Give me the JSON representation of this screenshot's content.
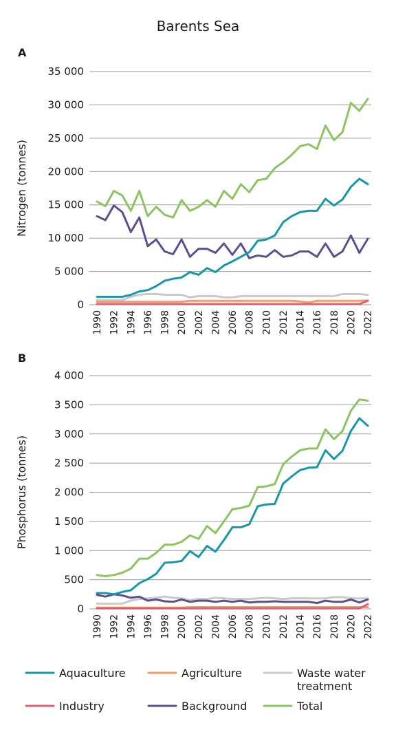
{
  "title": "Barents Sea",
  "colors": {
    "Aquaculture": "#1597a6",
    "Agriculture": "#f29b6b",
    "Waste water treatment": "#c9c9c9",
    "Industry": "#e0606f",
    "Background": "#5e4e8f",
    "Total": "#8dc462"
  },
  "legend": [
    {
      "name": "Aquaculture",
      "lines": [
        "Aquaculture"
      ]
    },
    {
      "name": "Agriculture",
      "lines": [
        "Agriculture"
      ]
    },
    {
      "name": "Waste water treatment",
      "lines": [
        "Waste water",
        "treatment"
      ]
    },
    {
      "name": "Industry",
      "lines": [
        "Industry"
      ]
    },
    {
      "name": "Background",
      "lines": [
        "Background"
      ]
    },
    {
      "name": "Total",
      "lines": [
        "Total"
      ]
    }
  ],
  "chart_data": [
    {
      "type": "line",
      "panel": "A",
      "ylabel": "Nitrogen (tonnes)",
      "ylim": [
        0,
        35000
      ],
      "yticks": [
        0,
        5000,
        10000,
        15000,
        20000,
        25000,
        30000,
        35000
      ],
      "ytick_labels": [
        "0",
        "5 000",
        "10 000",
        "15 000",
        "20 000",
        "25 000",
        "30 000",
        "35 000"
      ],
      "x": [
        1990,
        1991,
        1992,
        1993,
        1994,
        1995,
        1996,
        1997,
        1998,
        1999,
        2000,
        2001,
        2002,
        2003,
        2004,
        2005,
        2006,
        2007,
        2008,
        2009,
        2010,
        2011,
        2012,
        2013,
        2014,
        2015,
        2016,
        2017,
        2018,
        2019,
        2020,
        2021,
        2022
      ],
      "xticks": [
        1990,
        1992,
        1994,
        1996,
        1998,
        2000,
        2002,
        2004,
        2006,
        2008,
        2010,
        2012,
        2014,
        2016,
        2018,
        2020,
        2022
      ],
      "xtick_labels": [
        "1990",
        "1992",
        "1994",
        "1996",
        "1998",
        "2000",
        "2002",
        "2004",
        "2006",
        "2008",
        "2010",
        "2012",
        "2014",
        "2016",
        "2018",
        "2020",
        "2022"
      ],
      "grid": true,
      "series": [
        {
          "name": "Waste water treatment",
          "values": [
            700,
            700,
            700,
            700,
            1200,
            1500,
            1600,
            1600,
            1500,
            1500,
            1500,
            1100,
            1300,
            1300,
            1300,
            1100,
            1100,
            1300,
            1300,
            1300,
            1300,
            1300,
            1300,
            1300,
            1300,
            1300,
            1300,
            1300,
            1300,
            1600,
            1600,
            1600,
            1500
          ]
        },
        {
          "name": "Agriculture",
          "values": [
            450,
            450,
            450,
            450,
            450,
            450,
            450,
            450,
            450,
            450,
            450,
            600,
            600,
            600,
            600,
            600,
            600,
            600,
            600,
            600,
            600,
            600,
            600,
            600,
            500,
            350,
            600,
            600,
            600,
            600,
            600,
            600,
            650
          ]
        },
        {
          "name": "Industry",
          "values": [
            100,
            100,
            100,
            100,
            100,
            100,
            100,
            100,
            100,
            100,
            100,
            100,
            100,
            100,
            100,
            100,
            100,
            100,
            100,
            100,
            100,
            100,
            100,
            100,
            100,
            100,
            100,
            100,
            100,
            100,
            100,
            100,
            600
          ]
        },
        {
          "name": "Background",
          "values": [
            13300,
            12700,
            14900,
            13900,
            10900,
            13100,
            8800,
            9800,
            8000,
            7600,
            9800,
            7200,
            8400,
            8400,
            7800,
            9200,
            7500,
            9200,
            7000,
            7400,
            7200,
            8200,
            7200,
            7400,
            8000,
            8000,
            7200,
            9200,
            7200,
            8000,
            10400,
            7800,
            9900
          ]
        },
        {
          "name": "Aquaculture",
          "values": [
            1200,
            1200,
            1200,
            1200,
            1500,
            2000,
            2200,
            2800,
            3600,
            3900,
            4100,
            4900,
            4500,
            5500,
            4900,
            5900,
            6500,
            7200,
            7900,
            9600,
            9800,
            10400,
            12400,
            13300,
            13900,
            14100,
            14100,
            15900,
            14900,
            15800,
            17700,
            18900,
            18100
          ]
        },
        {
          "name": "Total",
          "values": [
            15500,
            14800,
            17100,
            16400,
            14100,
            17100,
            13300,
            14700,
            13500,
            13100,
            15700,
            14100,
            14700,
            15700,
            14700,
            17100,
            15900,
            18100,
            16900,
            18700,
            18900,
            20500,
            21400,
            22500,
            23800,
            24100,
            23400,
            26900,
            24700,
            25900,
            30300,
            29100,
            30900
          ]
        }
      ]
    },
    {
      "type": "line",
      "panel": "B",
      "ylabel": "Phosphorus (tonnes)",
      "ylim": [
        0,
        4000
      ],
      "yticks": [
        0,
        500,
        1000,
        1500,
        2000,
        2500,
        3000,
        3500,
        4000
      ],
      "ytick_labels": [
        "0",
        "500",
        "1 000",
        "1 500",
        "2 000",
        "2 500",
        "3 000",
        "3 500",
        "4 000"
      ],
      "x": [
        1990,
        1991,
        1992,
        1993,
        1994,
        1995,
        1996,
        1997,
        1998,
        1999,
        2000,
        2001,
        2002,
        2003,
        2004,
        2005,
        2006,
        2007,
        2008,
        2009,
        2010,
        2011,
        2012,
        2013,
        2014,
        2015,
        2016,
        2017,
        2018,
        2019,
        2020,
        2021,
        2022
      ],
      "xticks": [
        1990,
        1992,
        1994,
        1996,
        1998,
        2000,
        2002,
        2004,
        2006,
        2008,
        2010,
        2012,
        2014,
        2016,
        2018,
        2020,
        2022
      ],
      "xtick_labels": [
        "1990",
        "1992",
        "1994",
        "1996",
        "1998",
        "2000",
        "2002",
        "2004",
        "2006",
        "2008",
        "2010",
        "2012",
        "2014",
        "2016",
        "2018",
        "2020",
        "2022"
      ],
      "grid": true,
      "series": [
        {
          "name": "Waste water treatment",
          "values": [
            90,
            90,
            90,
            90,
            140,
            170,
            180,
            190,
            210,
            190,
            180,
            150,
            170,
            170,
            190,
            180,
            170,
            170,
            170,
            180,
            190,
            180,
            170,
            180,
            180,
            180,
            180,
            180,
            200,
            200,
            180,
            180,
            180
          ]
        },
        {
          "name": "Agriculture",
          "values": [
            20,
            20,
            20,
            20,
            20,
            20,
            20,
            20,
            20,
            20,
            20,
            30,
            30,
            30,
            30,
            30,
            30,
            30,
            30,
            30,
            30,
            30,
            30,
            30,
            30,
            30,
            30,
            30,
            30,
            30,
            30,
            30,
            30
          ]
        },
        {
          "name": "Industry",
          "values": [
            10,
            10,
            10,
            10,
            10,
            10,
            10,
            10,
            10,
            10,
            10,
            10,
            10,
            10,
            10,
            10,
            10,
            10,
            10,
            10,
            10,
            10,
            10,
            10,
            10,
            10,
            10,
            10,
            10,
            10,
            10,
            10,
            80
          ]
        },
        {
          "name": "Background",
          "values": [
            240,
            210,
            250,
            230,
            190,
            210,
            140,
            160,
            130,
            120,
            160,
            120,
            140,
            140,
            120,
            140,
            120,
            140,
            110,
            120,
            120,
            130,
            120,
            120,
            120,
            120,
            100,
            140,
            120,
            120,
            160,
            110,
            160
          ]
        },
        {
          "name": "Aquaculture",
          "values": [
            270,
            270,
            250,
            290,
            320,
            440,
            510,
            600,
            790,
            800,
            820,
            990,
            890,
            1080,
            980,
            1180,
            1400,
            1400,
            1450,
            1760,
            1790,
            1800,
            2150,
            2270,
            2380,
            2420,
            2430,
            2720,
            2570,
            2710,
            3050,
            3270,
            3140
          ]
        },
        {
          "name": "Total",
          "values": [
            580,
            560,
            580,
            620,
            690,
            860,
            860,
            960,
            1100,
            1100,
            1150,
            1260,
            1200,
            1420,
            1300,
            1500,
            1710,
            1730,
            1770,
            2090,
            2100,
            2140,
            2480,
            2610,
            2720,
            2750,
            2750,
            3080,
            2910,
            3050,
            3400,
            3590,
            3570
          ]
        }
      ]
    }
  ]
}
